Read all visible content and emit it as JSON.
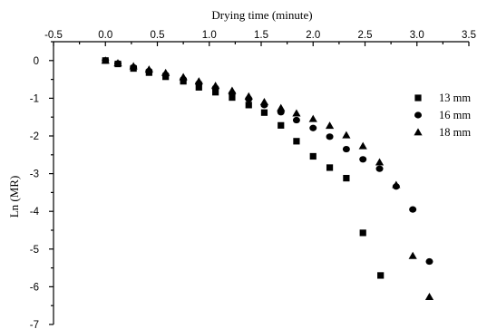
{
  "chart_data": {
    "type": "scatter",
    "xlabel": "Drying time (minute)",
    "ylabel": "Ln (MR)",
    "xlim": [
      -0.5,
      3.5
    ],
    "ylim": [
      -7,
      0.5
    ],
    "x_ticks": [
      "-0.5",
      "0.0",
      "0.5",
      "1.0",
      "1.5",
      "2.0",
      "2.5",
      "3.0",
      "3.5"
    ],
    "y_ticks": [
      "0",
      "-1",
      "-2",
      "-3",
      "-4",
      "-5",
      "-6",
      "-7"
    ],
    "x_axis_position": "top",
    "grid": false,
    "legend_position": "right",
    "series": [
      {
        "name": "13 mm",
        "marker": "square",
        "color": "#000000",
        "x": [
          0.0,
          0.12,
          0.27,
          0.42,
          0.58,
          0.75,
          0.9,
          1.06,
          1.22,
          1.38,
          1.53,
          1.69,
          1.84,
          2.0,
          2.16,
          2.32,
          2.48,
          2.65
        ],
        "y": [
          0.0,
          -0.09,
          -0.21,
          -0.32,
          -0.43,
          -0.55,
          -0.71,
          -0.84,
          -0.98,
          -1.18,
          -1.38,
          -1.72,
          -2.14,
          -2.54,
          -2.84,
          -3.12,
          -4.57,
          -5.7
        ]
      },
      {
        "name": "16 mm",
        "marker": "circle",
        "color": "#000000",
        "x": [
          0.0,
          0.12,
          0.27,
          0.42,
          0.58,
          0.75,
          0.9,
          1.06,
          1.22,
          1.38,
          1.53,
          1.69,
          1.84,
          2.0,
          2.16,
          2.32,
          2.48,
          2.64,
          2.8,
          2.96,
          3.12
        ],
        "y": [
          0.0,
          -0.08,
          -0.18,
          -0.28,
          -0.38,
          -0.5,
          -0.61,
          -0.73,
          -0.87,
          -1.02,
          -1.18,
          -1.37,
          -1.58,
          -1.79,
          -2.02,
          -2.35,
          -2.62,
          -2.87,
          -3.34,
          -3.95,
          -5.33
        ]
      },
      {
        "name": "18 mm",
        "marker": "triangle",
        "color": "#000000",
        "x": [
          0.0,
          0.12,
          0.27,
          0.42,
          0.58,
          0.75,
          0.9,
          1.06,
          1.22,
          1.38,
          1.53,
          1.69,
          1.84,
          2.0,
          2.16,
          2.32,
          2.48,
          2.64,
          2.8,
          2.96,
          3.12
        ],
        "y": [
          0.0,
          -0.07,
          -0.15,
          -0.24,
          -0.33,
          -0.44,
          -0.55,
          -0.67,
          -0.8,
          -0.95,
          -1.1,
          -1.26,
          -1.4,
          -1.55,
          -1.73,
          -1.98,
          -2.27,
          -2.7,
          -3.3,
          -5.18,
          -6.27
        ]
      }
    ]
  }
}
